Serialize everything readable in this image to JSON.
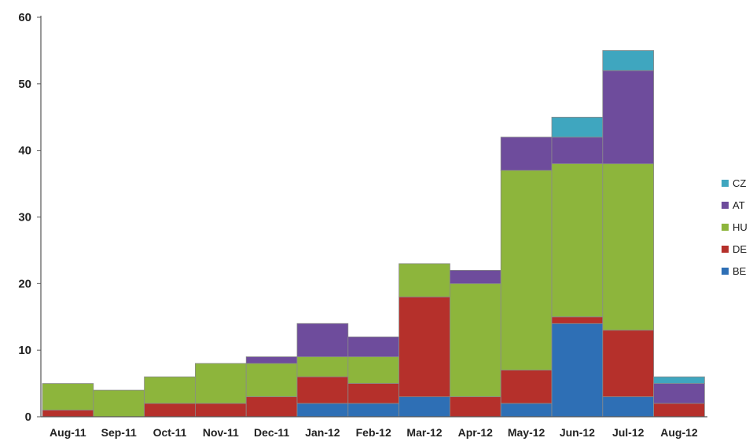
{
  "chart_data": {
    "type": "bar",
    "stacked": true,
    "categories": [
      "Aug-11",
      "Sep-11",
      "Oct-11",
      "Nov-11",
      "Dec-11",
      "Jan-12",
      "Feb-12",
      "Mar-12",
      "Apr-12",
      "May-12",
      "Jun-12",
      "Jul-12",
      "Aug-12"
    ],
    "series": [
      {
        "name": "BE",
        "color": "#2e6fb5",
        "values": [
          0,
          0,
          0,
          0,
          0,
          2,
          2,
          3,
          0,
          2,
          14,
          3,
          0
        ]
      },
      {
        "name": "DE",
        "color": "#b5302b",
        "values": [
          1,
          0,
          2,
          2,
          3,
          4,
          3,
          15,
          3,
          5,
          1,
          10,
          2
        ]
      },
      {
        "name": "HU",
        "color": "#8db53c",
        "values": [
          4,
          4,
          4,
          6,
          5,
          3,
          4,
          5,
          17,
          30,
          23,
          25,
          0
        ]
      },
      {
        "name": "AT",
        "color": "#6e4c9c",
        "values": [
          0,
          0,
          0,
          0,
          1,
          5,
          3,
          0,
          2,
          5,
          4,
          14,
          3
        ]
      },
      {
        "name": "CZ",
        "color": "#3fa6bf",
        "values": [
          0,
          0,
          0,
          0,
          0,
          0,
          0,
          0,
          0,
          0,
          3,
          3,
          1
        ]
      }
    ],
    "yticks": [
      0,
      10,
      20,
      30,
      40,
      50,
      60
    ],
    "ylim": [
      0,
      60
    ],
    "legend_position": "right",
    "legend_order": [
      "CZ",
      "AT",
      "HU",
      "DE",
      "BE"
    ],
    "grid": false
  }
}
